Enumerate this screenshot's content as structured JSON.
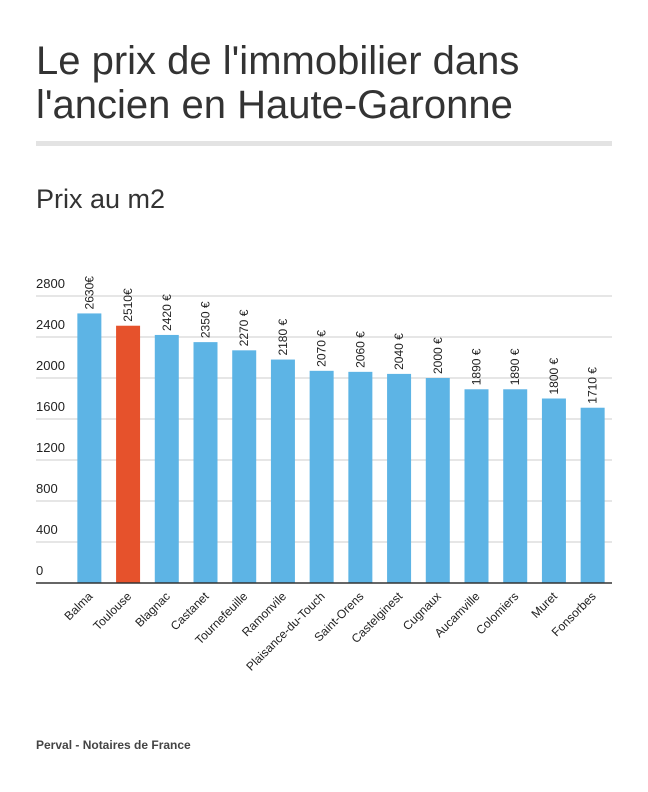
{
  "chart_data": {
    "type": "bar",
    "title": "Le prix de l'immobilier dans l'ancien en Haute-Garonne",
    "subtitle": "Prix au m2",
    "source": "Perval - Notaires de France",
    "categories": [
      "Balma",
      "Toulouse",
      "Blagnac",
      "Castanet",
      "Tournefeuille",
      "Ramonvile",
      "Plaisance-du-Touch",
      "Saint-Orens",
      "Castelginest",
      "Cugnaux",
      "Aucamville",
      "Colomiers",
      "Muret",
      "Fonsorbes"
    ],
    "values": [
      2630,
      2510,
      2420,
      2350,
      2270,
      2180,
      2070,
      2060,
      2040,
      2000,
      1890,
      1890,
      1800,
      1710
    ],
    "value_labels": [
      "2630€",
      "2510€",
      "2420 €",
      "2350 €",
      "2270 €",
      "2180 €",
      "2070 €",
      "2060 €",
      "2040 €",
      "2000 €",
      "1890 €",
      "1890 €",
      "1800 €",
      "1710 €"
    ],
    "colors": [
      "#5db4e5",
      "#e6522c",
      "#5db4e5",
      "#5db4e5",
      "#5db4e5",
      "#5db4e5",
      "#5db4e5",
      "#5db4e5",
      "#5db4e5",
      "#5db4e5",
      "#5db4e5",
      "#5db4e5",
      "#5db4e5",
      "#5db4e5"
    ],
    "ylim": [
      0,
      2800
    ],
    "yticks": [
      0,
      400,
      800,
      1200,
      1600,
      2000,
      2400,
      2800
    ],
    "grid": true
  }
}
